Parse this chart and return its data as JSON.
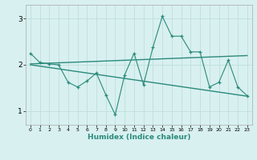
{
  "xlabel": "Humidex (Indice chaleur)",
  "bg_color": "#d8f0f0",
  "line_color": "#2a8a7a",
  "grid_color": "#c0dede",
  "xlim": [
    -0.5,
    23.5
  ],
  "ylim": [
    0.7,
    3.3
  ],
  "yticks": [
    1,
    2,
    3
  ],
  "xticks": [
    0,
    1,
    2,
    3,
    4,
    5,
    6,
    7,
    8,
    9,
    10,
    11,
    12,
    13,
    14,
    15,
    16,
    17,
    18,
    19,
    20,
    21,
    22,
    23
  ],
  "line1_x": [
    0,
    1,
    2,
    3,
    4,
    5,
    6,
    7,
    8,
    9,
    10,
    11,
    12,
    13,
    14,
    15,
    16,
    17,
    18,
    19,
    20,
    21,
    22,
    23
  ],
  "line1_y": [
    2.25,
    2.05,
    2.02,
    2.0,
    1.62,
    1.52,
    1.65,
    1.82,
    1.35,
    0.92,
    1.78,
    2.25,
    1.57,
    2.38,
    3.05,
    2.62,
    2.62,
    2.28,
    2.28,
    1.52,
    1.62,
    2.1,
    1.52,
    1.33
  ],
  "line2_x": [
    0,
    23
  ],
  "line2_y": [
    2.02,
    2.2
  ],
  "line3_x": [
    0,
    23
  ],
  "line3_y": [
    2.0,
    1.32
  ]
}
